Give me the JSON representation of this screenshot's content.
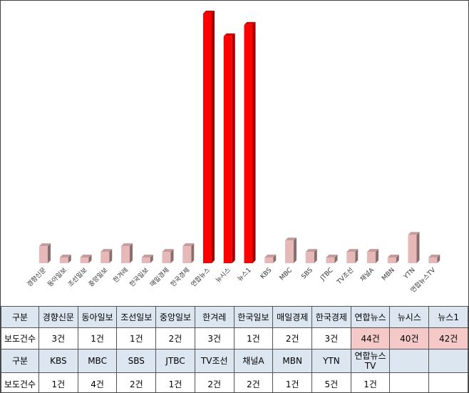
{
  "chart_data": {
    "type": "bar",
    "categories": [
      "경향신문",
      "동아일보",
      "조선일보",
      "중앙일보",
      "한겨레",
      "한국일보",
      "매일경제",
      "한국경제",
      "연합뉴스",
      "뉴시스",
      "뉴스1",
      "KBS",
      "MBC",
      "SBS",
      "JTBC",
      "TV조선",
      "채널A",
      "MBN",
      "YTN",
      "연합뉴스TV"
    ],
    "values": [
      3,
      1,
      1,
      2,
      3,
      1,
      2,
      3,
      44,
      40,
      42,
      1,
      4,
      2,
      1,
      2,
      2,
      1,
      5,
      1
    ],
    "colors": [
      "#e6b8b7",
      "#e6b8b7",
      "#e6b8b7",
      "#e6b8b7",
      "#e6b8b7",
      "#e6b8b7",
      "#e6b8b7",
      "#e6b8b7",
      "#ff0000",
      "#ff0000",
      "#ff0000",
      "#e6b8b7",
      "#e6b8b7",
      "#e6b8b7",
      "#e6b8b7",
      "#e6b8b7",
      "#e6b8b7",
      "#e6b8b7",
      "#e6b8b7",
      "#e6b8b7"
    ]
  },
  "table": {
    "rows": [
      [
        "구분",
        "경향신문",
        "동아일보",
        "조선일보",
        "중앙일보",
        "한겨레",
        "한국일보",
        "매일경제",
        "한국경제",
        "연합뉴스",
        "뉴시스",
        "뉴스1"
      ],
      [
        "보도건수",
        "3건",
        "1건",
        "1건",
        "2건",
        "3건",
        "1건",
        "2건",
        "3건",
        "44건",
        "40건",
        "42건"
      ],
      [
        "구분",
        "KBS",
        "MBC",
        "SBS",
        "JTBC",
        "TV조선",
        "채널A",
        "MBN",
        "YTN",
        "연합뉴스TV"
      ],
      [
        "보도건수",
        "1건",
        "4건",
        "2건",
        "1건",
        "2건",
        "2건",
        "1건",
        "5건",
        "1건"
      ]
    ]
  }
}
